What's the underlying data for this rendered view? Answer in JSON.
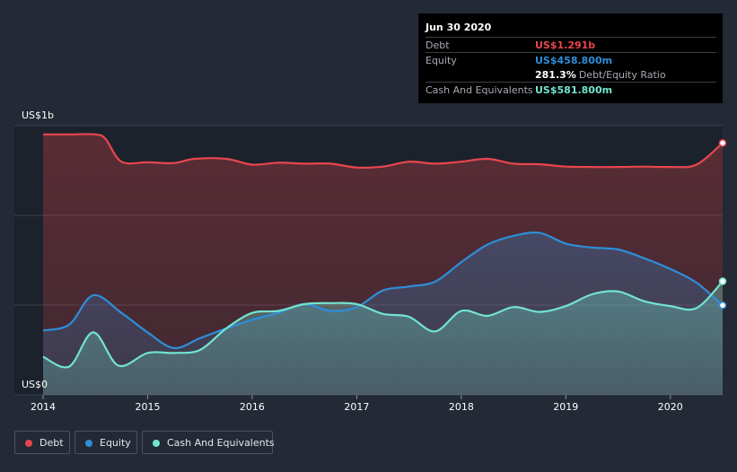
{
  "colors": {
    "debt": "#e8464e",
    "equity": "#2e8ed8",
    "cash": "#72e4cf",
    "background": "#232a35",
    "plot_background": "#1c222b",
    "grid": "#3a414c",
    "axis_text": "#ffffff"
  },
  "tooltip": {
    "date": "Jun 30 2020",
    "rows": [
      {
        "label": "Debt",
        "value": "US$1.291b",
        "color": "#e8464e"
      },
      {
        "label": "Equity",
        "value": "US$458.800m",
        "color": "#2e8ed8"
      },
      {
        "label": "",
        "value": "281.3%",
        "suffix": "Debt/Equity Ratio",
        "color": "#ffffff"
      },
      {
        "label": "Cash And Equivalents",
        "value": "US$581.800m",
        "color": "#72e4cf"
      }
    ]
  },
  "legend": [
    {
      "label": "Debt",
      "color": "#e8464e",
      "icon": "debt-dot-icon"
    },
    {
      "label": "Equity",
      "color": "#2e8ed8",
      "icon": "equity-dot-icon"
    },
    {
      "label": "Cash And Equivalents",
      "color": "#72e4cf",
      "icon": "cash-dot-icon"
    }
  ],
  "chart_data": {
    "type": "area",
    "title": "",
    "xlabel": "",
    "ylabel": "",
    "y_top_label": "US$1b",
    "y_bottom_label": "US$0",
    "xlim": [
      2014.0,
      2020.5
    ],
    "ylim": [
      0,
      1.38
    ],
    "x_ticks": [
      2014,
      2015,
      2016,
      2017,
      2018,
      2019,
      2020
    ],
    "x_tick_labels": [
      "2014",
      "2015",
      "2016",
      "2017",
      "2018",
      "2019",
      "2020"
    ],
    "grid": true,
    "legend_position": "bottom-left",
    "series": [
      {
        "name": "Debt",
        "color": "#e8464e",
        "points": [
          [
            2014.0,
            1.335
          ],
          [
            2014.25,
            1.335
          ],
          [
            2014.5,
            1.335
          ],
          [
            2014.6,
            1.31
          ],
          [
            2014.75,
            1.195
          ],
          [
            2015.0,
            1.192
          ],
          [
            2015.25,
            1.188
          ],
          [
            2015.45,
            1.21
          ],
          [
            2015.75,
            1.21
          ],
          [
            2016.0,
            1.18
          ],
          [
            2016.25,
            1.19
          ],
          [
            2016.5,
            1.185
          ],
          [
            2016.75,
            1.185
          ],
          [
            2017.0,
            1.165
          ],
          [
            2017.25,
            1.17
          ],
          [
            2017.5,
            1.195
          ],
          [
            2017.75,
            1.185
          ],
          [
            2018.0,
            1.195
          ],
          [
            2018.25,
            1.21
          ],
          [
            2018.5,
            1.185
          ],
          [
            2018.75,
            1.182
          ],
          [
            2019.0,
            1.17
          ],
          [
            2019.25,
            1.168
          ],
          [
            2019.5,
            1.168
          ],
          [
            2019.75,
            1.17
          ],
          [
            2020.0,
            1.168
          ],
          [
            2020.25,
            1.18
          ],
          [
            2020.5,
            1.291
          ]
        ]
      },
      {
        "name": "Equity",
        "color": "#2e8ed8",
        "points": [
          [
            2014.0,
            0.33
          ],
          [
            2014.25,
            0.36
          ],
          [
            2014.48,
            0.51
          ],
          [
            2014.75,
            0.42
          ],
          [
            2015.0,
            0.32
          ],
          [
            2015.25,
            0.24
          ],
          [
            2015.5,
            0.29
          ],
          [
            2015.75,
            0.34
          ],
          [
            2016.0,
            0.385
          ],
          [
            2016.25,
            0.42
          ],
          [
            2016.5,
            0.465
          ],
          [
            2016.75,
            0.43
          ],
          [
            2017.0,
            0.45
          ],
          [
            2017.25,
            0.535
          ],
          [
            2017.5,
            0.555
          ],
          [
            2017.75,
            0.58
          ],
          [
            2018.0,
            0.68
          ],
          [
            2018.25,
            0.77
          ],
          [
            2018.5,
            0.815
          ],
          [
            2018.75,
            0.83
          ],
          [
            2019.0,
            0.775
          ],
          [
            2019.25,
            0.755
          ],
          [
            2019.5,
            0.745
          ],
          [
            2019.75,
            0.7
          ],
          [
            2020.0,
            0.645
          ],
          [
            2020.25,
            0.575
          ],
          [
            2020.5,
            0.4588
          ]
        ]
      },
      {
        "name": "Cash And Equivalents",
        "color": "#72e4cf",
        "points": [
          [
            2014.0,
            0.195
          ],
          [
            2014.25,
            0.145
          ],
          [
            2014.48,
            0.32
          ],
          [
            2014.72,
            0.15
          ],
          [
            2015.0,
            0.215
          ],
          [
            2015.25,
            0.215
          ],
          [
            2015.5,
            0.23
          ],
          [
            2015.75,
            0.34
          ],
          [
            2016.0,
            0.42
          ],
          [
            2016.25,
            0.43
          ],
          [
            2016.5,
            0.465
          ],
          [
            2016.75,
            0.47
          ],
          [
            2017.0,
            0.465
          ],
          [
            2017.25,
            0.415
          ],
          [
            2017.5,
            0.4
          ],
          [
            2017.75,
            0.325
          ],
          [
            2018.0,
            0.43
          ],
          [
            2018.25,
            0.405
          ],
          [
            2018.5,
            0.45
          ],
          [
            2018.75,
            0.425
          ],
          [
            2019.0,
            0.455
          ],
          [
            2019.25,
            0.515
          ],
          [
            2019.5,
            0.53
          ],
          [
            2019.75,
            0.48
          ],
          [
            2020.0,
            0.455
          ],
          [
            2020.25,
            0.445
          ],
          [
            2020.5,
            0.5818
          ]
        ]
      }
    ]
  }
}
